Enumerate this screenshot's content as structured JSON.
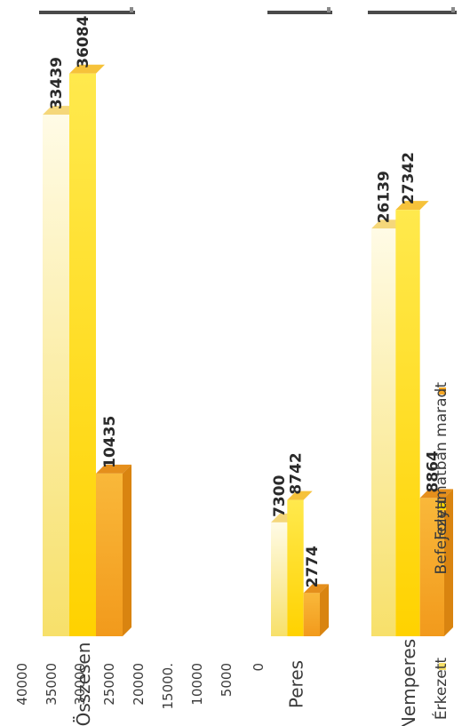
{
  "chart_data": {
    "type": "bar",
    "orientation": "rotated",
    "categories": [
      "Összesen",
      "Peres",
      "Nemperes"
    ],
    "series": [
      {
        "name": "Érkezett",
        "values": [
          33439,
          7300,
          26139
        ],
        "color": "#f7e06a"
      },
      {
        "name": "Befejezett",
        "values": [
          36084,
          8742,
          27342
        ],
        "color": "#ffd800"
      },
      {
        "name": "Folyamatban maradt",
        "values": [
          10435,
          2774,
          8864
        ],
        "color": "#f5a623"
      }
    ],
    "value_labels": [
      [
        "33439",
        "7300",
        "26139"
      ],
      [
        "36084",
        "8742",
        "27342"
      ],
      [
        "10435",
        "2774",
        "8864"
      ]
    ],
    "yticks": [
      "40000",
      "35000",
      "30000",
      "25000",
      "20000",
      "15000.",
      "10000",
      "5000",
      "0"
    ],
    "ylim": [
      0,
      40000
    ],
    "legend_position": "bottom",
    "grid": false
  }
}
